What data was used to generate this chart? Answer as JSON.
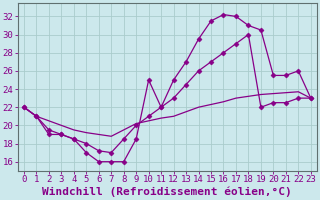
{
  "title": "",
  "xlabel": "Windchill (Refroidissement éolien,°C)",
  "ylabel": "",
  "xlim": [
    -0.5,
    23.5
  ],
  "ylim": [
    15,
    33.5
  ],
  "yticks": [
    16,
    18,
    20,
    22,
    24,
    26,
    28,
    30,
    32
  ],
  "xticks": [
    0,
    1,
    2,
    3,
    4,
    5,
    6,
    7,
    8,
    9,
    10,
    11,
    12,
    13,
    14,
    15,
    16,
    17,
    18,
    19,
    20,
    21,
    22,
    23
  ],
  "bg_color": "#cce8ec",
  "grid_color": "#aacccc",
  "line_color": "#880088",
  "line1_x": [
    0,
    1,
    2,
    3,
    4,
    5,
    6,
    7,
    8,
    9,
    10,
    11,
    12,
    13,
    14,
    15,
    16,
    17,
    18,
    19,
    20,
    21,
    22,
    23
  ],
  "line1_y": [
    22,
    21,
    19,
    19,
    18.5,
    17,
    16,
    16,
    16,
    18.5,
    25,
    22,
    25,
    27,
    29.5,
    31.5,
    32.2,
    32,
    31,
    30.5,
    25.5,
    25.5,
    26,
    23
  ],
  "line2_x": [
    0,
    1,
    2,
    3,
    4,
    5,
    6,
    7,
    8,
    9,
    10,
    11,
    12,
    13,
    14,
    15,
    16,
    17,
    18,
    19,
    20,
    21,
    22,
    23
  ],
  "line2_y": [
    22,
    21,
    19.5,
    19,
    18.5,
    18,
    17.2,
    17,
    18.5,
    20,
    21,
    22,
    23,
    24.5,
    26,
    27,
    28,
    29,
    30,
    22,
    22.5,
    22.5,
    23,
    23
  ],
  "line3_x": [
    0,
    1,
    2,
    3,
    4,
    5,
    6,
    7,
    8,
    9,
    10,
    11,
    12,
    13,
    14,
    15,
    16,
    17,
    18,
    19,
    20,
    21,
    22,
    23
  ],
  "line3_y": [
    22,
    21,
    20.5,
    20,
    19.5,
    19.2,
    19,
    18.8,
    19.5,
    20.2,
    20.5,
    20.8,
    21,
    21.5,
    22,
    22.3,
    22.6,
    23,
    23.2,
    23.4,
    23.5,
    23.6,
    23.7,
    23
  ],
  "font_size_xlabel": 8,
  "tick_font_size": 6.5,
  "marker": "D",
  "marker_size": 2.5,
  "linewidth": 0.9
}
